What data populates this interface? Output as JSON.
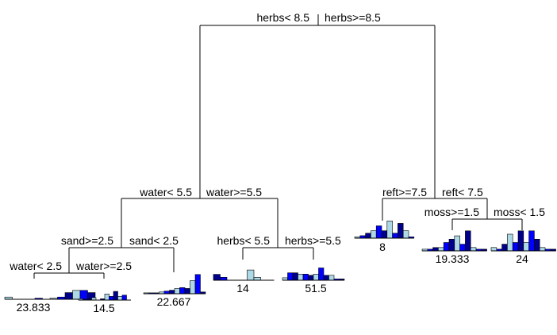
{
  "colors": {
    "light_blue": "#add8e6",
    "blue": "#0000ff",
    "dark_blue": "#00008b",
    "white": "#ffffff",
    "line": "#000000"
  },
  "tree": {
    "root": {
      "left_label": "herbs< 8.5",
      "right_label": "herbs>=8.5"
    },
    "water_55": {
      "left_label": "water< 5.5",
      "right_label": "water>=5.5"
    },
    "sand_25": {
      "left_label": "sand>=2.5",
      "right_label": "sand< 2.5"
    },
    "water_25": {
      "left_label": "water< 2.5",
      "right_label": "water>=2.5"
    },
    "herbs_55": {
      "left_label": "herbs< 5.5",
      "right_label": "herbs>=5.5"
    },
    "reft_75": {
      "left_label": "reft>=7.5",
      "right_label": "reft< 7.5"
    },
    "moss_15": {
      "left_label": "moss>=1.5",
      "right_label": "moss< 1.5"
    }
  },
  "leaves": [
    {
      "id": "leaf1",
      "label": "23.833",
      "colors": [
        "light_blue",
        "blue",
        "dark_blue",
        "light_blue",
        "blue",
        "dark_blue",
        "light_blue",
        "blue",
        "dark_blue",
        "light_blue",
        "blue",
        "dark_blue"
      ],
      "values": [
        1,
        0,
        0,
        0,
        0.5,
        0,
        0.5,
        1,
        3,
        4,
        4,
        3
      ]
    },
    {
      "id": "leaf2",
      "label": "14.5",
      "colors": [
        "light_blue",
        "blue",
        "dark_blue",
        "light_blue",
        "blue",
        "dark_blue",
        "light_blue",
        "blue",
        "dark_blue",
        "light_blue",
        "blue",
        "dark_blue"
      ],
      "values": [
        1,
        1,
        1,
        2,
        0,
        1,
        5,
        3,
        7,
        3,
        4,
        0
      ]
    },
    {
      "id": "leaf3",
      "label": "22.667",
      "colors": [
        "light_blue",
        "blue",
        "dark_blue",
        "light_blue",
        "blue",
        "dark_blue",
        "light_blue",
        "blue",
        "dark_blue",
        "light_blue",
        "blue",
        "dark_blue"
      ],
      "values": [
        0.5,
        0.5,
        0.5,
        1,
        1.5,
        2,
        3,
        3.5,
        3,
        7.5,
        11,
        1
      ]
    },
    {
      "id": "leaf4",
      "label": "14",
      "colors": [
        "dark_blue",
        "blue",
        "dark_blue",
        "dark_blue",
        "dark_blue",
        "light_blue",
        "light_blue",
        "white",
        "white"
      ],
      "values": [
        2,
        1,
        0,
        0,
        0,
        3.5,
        1,
        0,
        0
      ]
    },
    {
      "id": "leaf5",
      "label": "51.5",
      "colors": [
        "light_blue",
        "blue",
        "dark_blue",
        "light_blue",
        "blue",
        "dark_blue",
        "light_blue",
        "blue",
        "dark_blue",
        "light_blue",
        "blue",
        "dark_blue"
      ],
      "values": [
        1,
        3,
        3,
        2.5,
        2.5,
        2,
        2.5,
        5,
        2,
        2,
        0.5,
        0.5
      ]
    },
    {
      "id": "leaf6",
      "label": "8",
      "colors": [
        "light_blue",
        "blue",
        "dark_blue",
        "light_blue",
        "blue",
        "dark_blue",
        "light_blue",
        "blue",
        "dark_blue",
        "light_blue",
        "blue"
      ],
      "values": [
        0.5,
        1,
        2,
        3,
        5,
        3,
        7,
        2,
        6,
        3,
        0.5
      ]
    },
    {
      "id": "leaf7",
      "label": "19.333",
      "colors": [
        "light_blue",
        "blue",
        "dark_blue",
        "light_blue",
        "blue",
        "dark_blue",
        "light_blue",
        "blue",
        "dark_blue",
        "light_blue",
        "blue",
        "dark_blue"
      ],
      "values": [
        0.5,
        0.5,
        1,
        1,
        2.5,
        3.5,
        4.5,
        2,
        6,
        1,
        0.5,
        0.5
      ]
    },
    {
      "id": "leaf8",
      "label": "24",
      "colors": [
        "light_blue",
        "blue",
        "dark_blue",
        "light_blue",
        "blue",
        "dark_blue",
        "light_blue",
        "blue",
        "dark_blue",
        "light_blue",
        "blue",
        "dark_blue"
      ],
      "values": [
        1,
        0.5,
        2,
        5,
        2.5,
        6,
        2.5,
        6,
        3.5,
        1,
        0.5,
        0.5
      ]
    }
  ]
}
